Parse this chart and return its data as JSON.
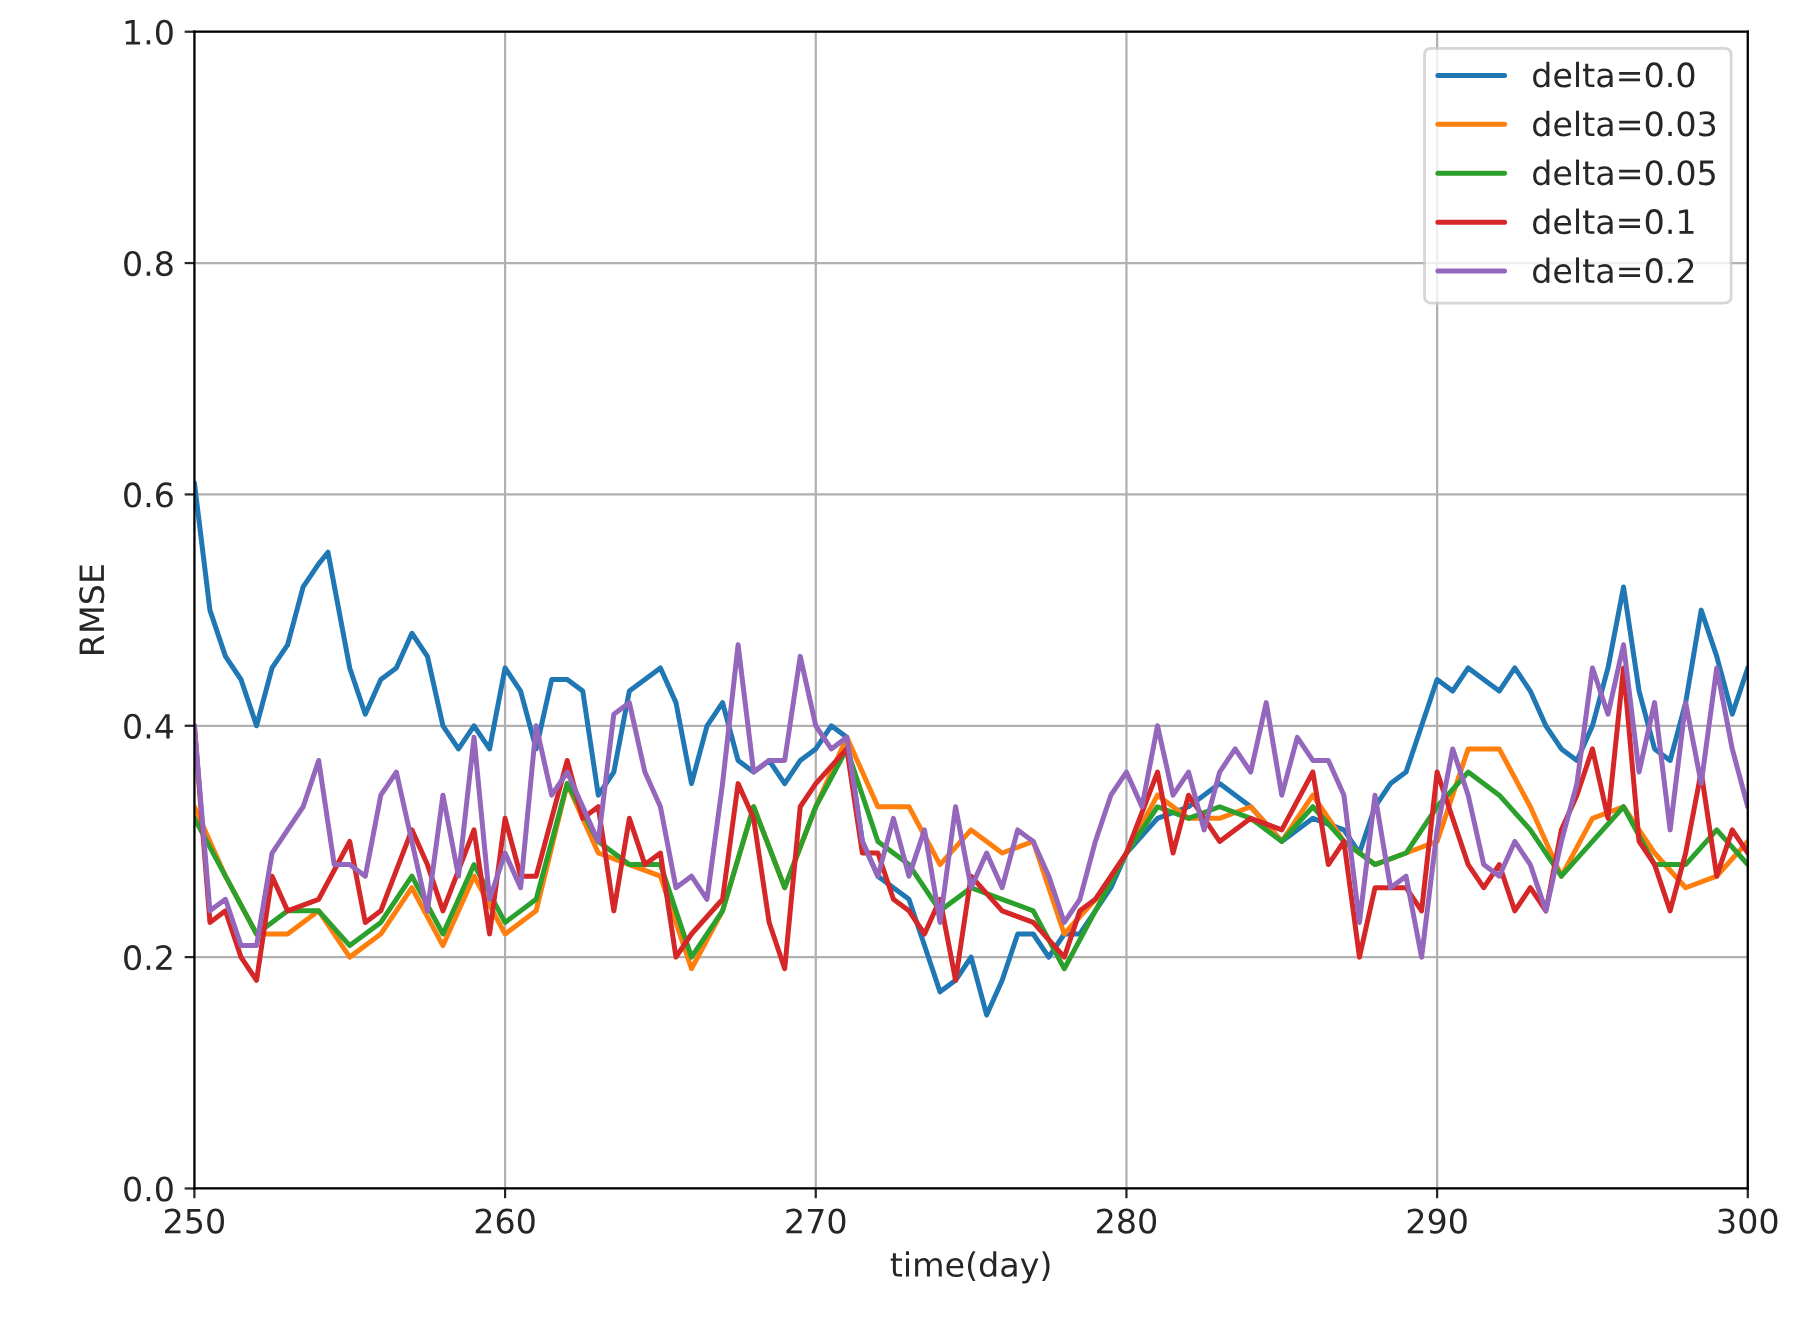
{
  "chart_data": {
    "type": "line",
    "xlabel": "time(day)",
    "ylabel": "RMSE",
    "xlim": [
      250,
      300
    ],
    "xticks": [
      250,
      260,
      270,
      280,
      290,
      300
    ],
    "ylim": [
      0.0,
      1.0
    ],
    "yticks": [
      {
        "value": 0,
        "label": "0.0"
      },
      0.2,
      0.4,
      0.6,
      0.8,
      {
        "value": 1,
        "label": "1.0"
      }
    ],
    "grid": true,
    "legend": "top right",
    "series": [
      {
        "name": "delta=0.0",
        "color": "#1f77b4",
        "x": [
          250,
          250.5,
          251,
          251.5,
          252,
          252.5,
          253,
          253.5,
          254,
          254.3,
          255,
          255.5,
          256,
          256.5,
          257,
          257.5,
          258,
          258.5,
          259,
          259.5,
          260,
          260.5,
          261,
          261.5,
          262,
          262.5,
          263,
          263.5,
          264,
          264.5,
          265,
          265.5,
          266,
          266.5,
          267,
          267.5,
          268,
          268.5,
          269,
          269.5,
          270,
          270.5,
          271,
          271.5,
          272,
          272.5,
          273,
          273.5,
          274,
          274.5,
          275,
          275.5,
          276,
          276.5,
          277,
          277.5,
          278,
          278.5,
          279,
          279.5,
          280,
          281,
          282,
          283,
          284,
          285,
          286,
          287,
          287.5,
          288,
          288.5,
          289,
          290,
          290.5,
          291,
          291.5,
          292,
          292.5,
          293,
          293.5,
          294,
          294.5,
          295,
          295.5,
          296,
          296.5,
          297,
          297.5,
          298,
          298.5,
          299,
          299.5,
          300
        ],
        "values": [
          0.61,
          0.5,
          0.46,
          0.44,
          0.4,
          0.45,
          0.47,
          0.52,
          0.54,
          0.55,
          0.45,
          0.41,
          0.44,
          0.45,
          0.48,
          0.46,
          0.4,
          0.38,
          0.4,
          0.38,
          0.45,
          0.43,
          0.38,
          0.44,
          0.44,
          0.43,
          0.34,
          0.36,
          0.43,
          0.44,
          0.45,
          0.42,
          0.35,
          0.4,
          0.42,
          0.37,
          0.36,
          0.37,
          0.35,
          0.37,
          0.38,
          0.4,
          0.39,
          0.3,
          0.27,
          0.26,
          0.25,
          0.21,
          0.17,
          0.18,
          0.2,
          0.15,
          0.18,
          0.22,
          0.22,
          0.2,
          0.22,
          0.22,
          0.24,
          0.26,
          0.29,
          0.32,
          0.33,
          0.35,
          0.33,
          0.3,
          0.32,
          0.31,
          0.29,
          0.33,
          0.35,
          0.36,
          0.44,
          0.43,
          0.45,
          0.44,
          0.43,
          0.45,
          0.43,
          0.4,
          0.38,
          0.37,
          0.4,
          0.45,
          0.52,
          0.43,
          0.38,
          0.37,
          0.42,
          0.5,
          0.46,
          0.41,
          0.45
        ]
      },
      {
        "name": "delta=0.03",
        "color": "#ff7f0e",
        "x": [
          250,
          251,
          252,
          253,
          254,
          255,
          256,
          257,
          258,
          259,
          260,
          261,
          262,
          263,
          264,
          265,
          266,
          267,
          268,
          269,
          270,
          271,
          272,
          273,
          274,
          275,
          276,
          277,
          278,
          279,
          280,
          281,
          282,
          283,
          284,
          285,
          286,
          287,
          288,
          289,
          290,
          291,
          292,
          293,
          294,
          295,
          296,
          297,
          298,
          299,
          300
        ],
        "values": [
          0.33,
          0.27,
          0.22,
          0.22,
          0.24,
          0.2,
          0.22,
          0.26,
          0.21,
          0.27,
          0.22,
          0.24,
          0.35,
          0.29,
          0.28,
          0.27,
          0.19,
          0.24,
          0.33,
          0.26,
          0.33,
          0.39,
          0.33,
          0.33,
          0.28,
          0.31,
          0.29,
          0.3,
          0.22,
          0.25,
          0.29,
          0.34,
          0.32,
          0.32,
          0.33,
          0.3,
          0.34,
          0.3,
          0.28,
          0.29,
          0.3,
          0.38,
          0.38,
          0.33,
          0.27,
          0.32,
          0.33,
          0.29,
          0.26,
          0.27,
          0.3
        ]
      },
      {
        "name": "delta=0.05",
        "color": "#2ca02c",
        "x": [
          250,
          251,
          252,
          253,
          254,
          255,
          256,
          257,
          258,
          259,
          260,
          261,
          262,
          263,
          264,
          265,
          266,
          267,
          268,
          269,
          270,
          271,
          272,
          273,
          274,
          275,
          276,
          277,
          278,
          279,
          280,
          281,
          282,
          283,
          284,
          285,
          286,
          287,
          288,
          289,
          290,
          291,
          292,
          293,
          294,
          295,
          296,
          297,
          298,
          299,
          300
        ],
        "values": [
          0.32,
          0.27,
          0.22,
          0.24,
          0.24,
          0.21,
          0.23,
          0.27,
          0.22,
          0.28,
          0.23,
          0.25,
          0.35,
          0.3,
          0.28,
          0.28,
          0.2,
          0.24,
          0.33,
          0.26,
          0.33,
          0.38,
          0.3,
          0.28,
          0.24,
          0.26,
          0.25,
          0.24,
          0.19,
          0.24,
          0.29,
          0.33,
          0.32,
          0.33,
          0.32,
          0.3,
          0.33,
          0.3,
          0.28,
          0.29,
          0.33,
          0.36,
          0.34,
          0.31,
          0.27,
          0.3,
          0.33,
          0.28,
          0.28,
          0.31,
          0.28
        ]
      },
      {
        "name": "delta=0.1",
        "color": "#d62728",
        "x": [
          250,
          250.5,
          251,
          251.5,
          252,
          252.5,
          253,
          254,
          255,
          255.5,
          256,
          257,
          257.5,
          258,
          259,
          259.5,
          260,
          260.5,
          261,
          262,
          262.5,
          263,
          263.5,
          264,
          264.5,
          265,
          265.5,
          266,
          267,
          267.5,
          268,
          268.5,
          269,
          269.5,
          270,
          271,
          271.5,
          272,
          272.5,
          273,
          273.5,
          274,
          274.5,
          275,
          276,
          277,
          278,
          278.5,
          279,
          280,
          281,
          281.5,
          282,
          283,
          284,
          285,
          286,
          286.5,
          287,
          287.5,
          288,
          289,
          289.5,
          290,
          290.5,
          291,
          291.5,
          292,
          292.5,
          293,
          293.5,
          294,
          294.5,
          295,
          295.5,
          296,
          296.5,
          297,
          297.5,
          298,
          298.5,
          299,
          299.5,
          300
        ],
        "values": [
          0.4,
          0.23,
          0.24,
          0.2,
          0.18,
          0.27,
          0.24,
          0.25,
          0.3,
          0.23,
          0.24,
          0.31,
          0.28,
          0.24,
          0.31,
          0.22,
          0.32,
          0.27,
          0.27,
          0.37,
          0.32,
          0.33,
          0.24,
          0.32,
          0.28,
          0.29,
          0.2,
          0.22,
          0.25,
          0.35,
          0.32,
          0.23,
          0.19,
          0.33,
          0.35,
          0.38,
          0.29,
          0.29,
          0.25,
          0.24,
          0.22,
          0.25,
          0.18,
          0.27,
          0.24,
          0.23,
          0.2,
          0.24,
          0.25,
          0.29,
          0.36,
          0.29,
          0.34,
          0.3,
          0.32,
          0.31,
          0.36,
          0.28,
          0.3,
          0.2,
          0.26,
          0.26,
          0.24,
          0.36,
          0.32,
          0.28,
          0.26,
          0.28,
          0.24,
          0.26,
          0.24,
          0.31,
          0.34,
          0.38,
          0.32,
          0.45,
          0.3,
          0.28,
          0.24,
          0.29,
          0.36,
          0.27,
          0.31,
          0.29
        ]
      },
      {
        "name": "delta=0.2",
        "color": "#9467bd",
        "x": [
          250,
          250.5,
          251,
          251.5,
          252,
          252.5,
          253,
          253.5,
          254,
          254.5,
          255,
          255.5,
          256,
          256.5,
          257,
          257.5,
          258,
          258.5,
          259,
          259.5,
          260,
          260.5,
          261,
          261.5,
          262,
          262.5,
          263,
          263.5,
          264,
          264.5,
          265,
          265.5,
          266,
          266.5,
          267,
          267.5,
          268,
          268.5,
          269,
          269.5,
          270,
          270.5,
          271,
          271.5,
          272,
          272.5,
          273,
          273.5,
          274,
          274.5,
          275,
          275.5,
          276,
          276.5,
          277,
          277.5,
          278,
          278.5,
          279,
          279.5,
          280,
          280.5,
          281,
          281.5,
          282,
          282.5,
          283,
          283.5,
          284,
          284.5,
          285,
          285.5,
          286,
          286.5,
          287,
          287.5,
          288,
          288.5,
          289,
          289.5,
          290,
          290.5,
          291,
          291.5,
          292,
          292.5,
          293,
          293.5,
          294,
          294.5,
          295,
          295.5,
          296,
          296.5,
          297,
          297.5,
          298,
          298.5,
          299,
          299.5,
          300
        ],
        "values": [
          0.4,
          0.24,
          0.25,
          0.21,
          0.21,
          0.29,
          0.31,
          0.33,
          0.37,
          0.28,
          0.28,
          0.27,
          0.34,
          0.36,
          0.3,
          0.24,
          0.34,
          0.27,
          0.39,
          0.25,
          0.29,
          0.26,
          0.4,
          0.34,
          0.36,
          0.33,
          0.3,
          0.41,
          0.42,
          0.36,
          0.33,
          0.26,
          0.27,
          0.25,
          0.35,
          0.47,
          0.36,
          0.37,
          0.37,
          0.46,
          0.4,
          0.38,
          0.39,
          0.3,
          0.27,
          0.32,
          0.27,
          0.31,
          0.23,
          0.33,
          0.26,
          0.29,
          0.26,
          0.31,
          0.3,
          0.27,
          0.23,
          0.25,
          0.3,
          0.34,
          0.36,
          0.33,
          0.4,
          0.34,
          0.36,
          0.31,
          0.36,
          0.38,
          0.36,
          0.42,
          0.34,
          0.39,
          0.37,
          0.37,
          0.34,
          0.23,
          0.34,
          0.26,
          0.27,
          0.2,
          0.31,
          0.38,
          0.34,
          0.28,
          0.27,
          0.3,
          0.28,
          0.24,
          0.3,
          0.35,
          0.45,
          0.41,
          0.47,
          0.36,
          0.42,
          0.31,
          0.42,
          0.35,
          0.45,
          0.38,
          0.33
        ]
      }
    ]
  }
}
